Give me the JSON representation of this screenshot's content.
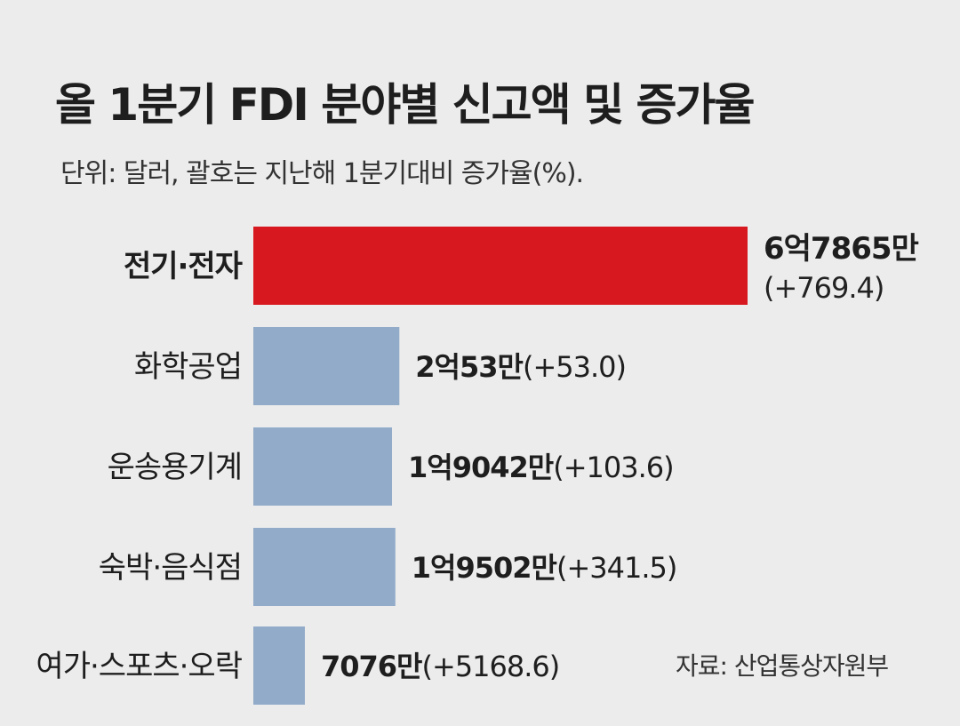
{
  "title": "올 1분기 FDI 분야별 신고액 및 증가율",
  "subtitle": "단위: 달러, 괄호는 지난해 1분기대비 증가율(%).",
  "source": "자료: 산업통상자원부",
  "colors": {
    "highlight": "#d7191f",
    "bar": "#92abc9",
    "background": "#ececec"
  },
  "chart_data": {
    "type": "bar",
    "orientation": "horizontal",
    "categories": [
      "전기·전자",
      "화학공업",
      "운송용기계",
      "숙박·음식점",
      "여가·스포츠·오락"
    ],
    "values": [
      678650000,
      200530000,
      190420000,
      195020000,
      70760000
    ],
    "growth_pct": [
      769.4,
      53.0,
      103.6,
      341.5,
      5168.6
    ],
    "value_labels": [
      "6억7865만",
      "2억53만",
      "1억9042만",
      "1억9502만",
      "7076만"
    ],
    "growth_labels": [
      "(+769.4)",
      "(+53.0)",
      "(+103.6)",
      "(+341.5)",
      "(+5168.6)"
    ],
    "highlight_index": 0,
    "grid": false
  }
}
